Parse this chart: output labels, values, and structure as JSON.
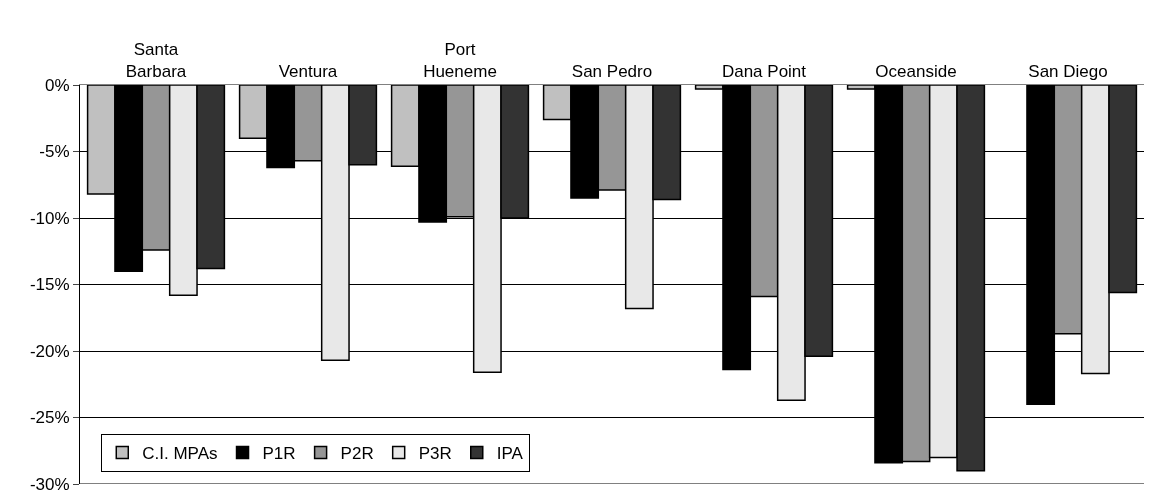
{
  "chart_data": {
    "type": "bar",
    "categories": [
      "Santa\nBarbara",
      "Ventura",
      "Port\nHueneme",
      "San Pedro",
      "Dana Point",
      "Oceanside",
      "San Diego"
    ],
    "series": [
      {
        "name": "C.I. MPAs",
        "color": "#c0c0c0",
        "values": [
          -8.2,
          -4.0,
          -6.1,
          -2.6,
          -0.3,
          -0.3,
          null
        ]
      },
      {
        "name": "P1R",
        "color": "#000000",
        "values": [
          -14.0,
          -6.2,
          -10.3,
          -8.5,
          -21.4,
          -28.4,
          -24.0
        ]
      },
      {
        "name": "P2R",
        "color": "#969696",
        "values": [
          -12.4,
          -5.7,
          -9.9,
          -7.9,
          -15.9,
          -28.3,
          -18.7
        ]
      },
      {
        "name": "P3R",
        "color": "#e8e8e8",
        "values": [
          -15.8,
          -20.7,
          -21.6,
          -16.8,
          -23.7,
          -28.0,
          -21.7
        ]
      },
      {
        "name": "IPA",
        "color": "#333333",
        "values": [
          -13.8,
          -6.0,
          -10.0,
          -8.6,
          -20.4,
          -29.0,
          -15.6
        ]
      }
    ],
    "ylim": [
      -30,
      0
    ],
    "yticks": [
      {
        "value": -30,
        "label": "-30%"
      },
      {
        "value": -25,
        "label": "-25%"
      },
      {
        "value": -20,
        "label": "-20%"
      },
      {
        "value": -15,
        "label": "-15%"
      },
      {
        "value": -10,
        "label": "-10%"
      },
      {
        "value": -5,
        "label": "-5%"
      },
      {
        "value": 0,
        "label": "0%"
      }
    ],
    "grid": "y",
    "legend": "bottom left"
  }
}
